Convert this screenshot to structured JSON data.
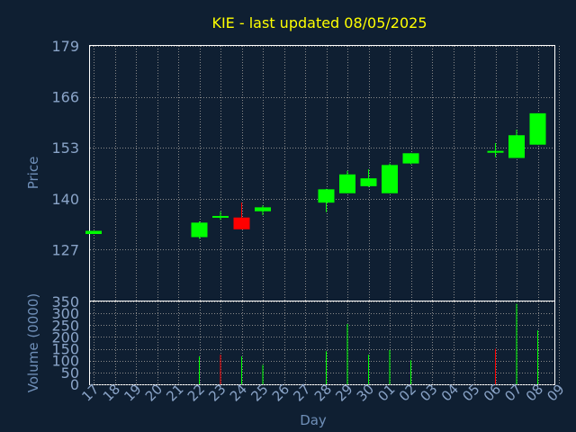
{
  "chart_data": [
    {
      "type": "candlestick",
      "title": "KIE - last updated 08/05/2025",
      "xlabel": "",
      "ylabel": "Price",
      "ylim": [
        114,
        179
      ],
      "yticks": [
        127,
        140,
        153,
        166,
        179
      ],
      "categories": [
        "17",
        "18",
        "19",
        "20",
        "21",
        "22",
        "23",
        "24",
        "25",
        "26",
        "27",
        "28",
        "29",
        "30",
        "01",
        "02",
        "03",
        "04",
        "05",
        "06",
        "07",
        "08",
        "09"
      ],
      "grid": true,
      "candles": [
        {
          "x": "17",
          "open": 131.0,
          "close": 131.8,
          "high": 131.8,
          "low": 131.0
        },
        {
          "x": "22",
          "open": 130.2,
          "close": 133.9,
          "high": 134.2,
          "low": 129.8
        },
        {
          "x": "23",
          "open": 135.6,
          "close": 135.6,
          "high": 136.7,
          "low": 134.6
        },
        {
          "x": "24",
          "open": 135.2,
          "close": 132.2,
          "high": 139.0,
          "low": 132.2
        },
        {
          "x": "25",
          "open": 136.8,
          "close": 137.8,
          "high": 138.3,
          "low": 135.8
        },
        {
          "x": "28",
          "open": 139.0,
          "close": 142.4,
          "high": 142.5,
          "low": 136.6
        },
        {
          "x": "29",
          "open": 141.4,
          "close": 146.2,
          "high": 147.1,
          "low": 141.4
        },
        {
          "x": "30",
          "open": 143.2,
          "close": 145.2,
          "high": 147.5,
          "low": 143.0
        },
        {
          "x": "01",
          "open": 141.4,
          "close": 148.6,
          "high": 149.0,
          "low": 141.4
        },
        {
          "x": "02",
          "open": 149.0,
          "close": 151.6,
          "high": 151.6,
          "low": 148.8
        },
        {
          "x": "06",
          "open": 152.2,
          "close": 152.2,
          "high": 154.2,
          "low": 150.6
        },
        {
          "x": "07",
          "open": 150.4,
          "close": 156.2,
          "high": 157.6,
          "low": 150.4
        },
        {
          "x": "08",
          "open": 153.8,
          "close": 161.8,
          "high": 161.8,
          "low": 153.8
        }
      ]
    },
    {
      "type": "bar",
      "xlabel": "Day",
      "ylabel": "Volume (0000)",
      "ylim": [
        0,
        350
      ],
      "yticks": [
        0,
        50,
        100,
        150,
        200,
        250,
        300,
        350
      ],
      "categories": [
        "17",
        "18",
        "19",
        "20",
        "21",
        "22",
        "23",
        "24",
        "25",
        "26",
        "27",
        "28",
        "29",
        "30",
        "01",
        "02",
        "03",
        "04",
        "05",
        "06",
        "07",
        "08",
        "09"
      ],
      "grid": true,
      "bars": [
        {
          "x": "22",
          "value": 118,
          "direction": "up"
        },
        {
          "x": "23",
          "value": 125,
          "direction": "down"
        },
        {
          "x": "24",
          "value": 118,
          "direction": "up"
        },
        {
          "x": "25",
          "value": 82,
          "direction": "up"
        },
        {
          "x": "28",
          "value": 140,
          "direction": "up"
        },
        {
          "x": "29",
          "value": 255,
          "direction": "up"
        },
        {
          "x": "30",
          "value": 125,
          "direction": "up"
        },
        {
          "x": "01",
          "value": 145,
          "direction": "up"
        },
        {
          "x": "02",
          "value": 102,
          "direction": "up"
        },
        {
          "x": "06",
          "value": 150,
          "direction": "down"
        },
        {
          "x": "07",
          "value": 340,
          "direction": "up"
        },
        {
          "x": "08",
          "value": 228,
          "direction": "up"
        }
      ]
    }
  ],
  "colors": {
    "background": "#0f1f32",
    "up": "#00ff00",
    "down": "#ff0000",
    "title": "#ffff00",
    "axis_text": "#8aa4c8",
    "axis_label": "#6f8fb8",
    "grid": "#8a8a8a",
    "frame": "#ffffff"
  }
}
